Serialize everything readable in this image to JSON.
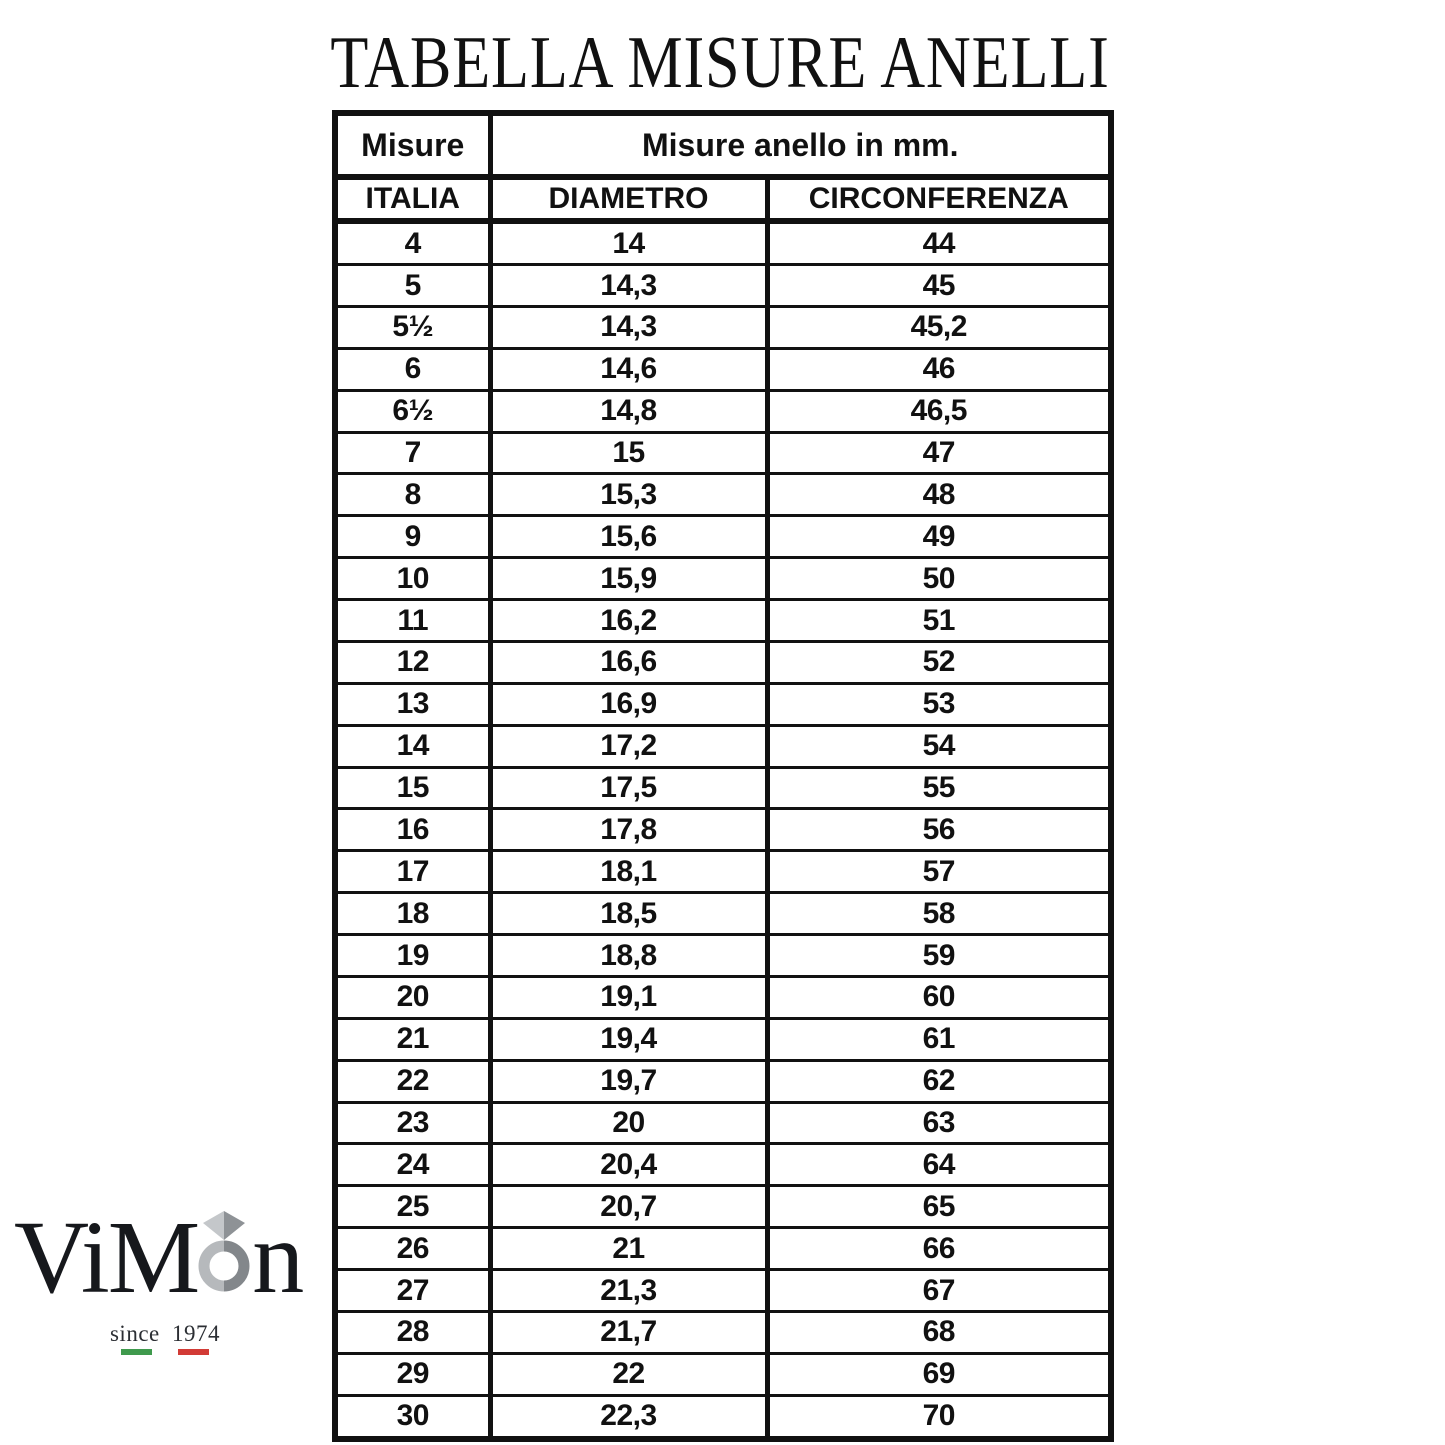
{
  "page": {
    "title": "TABELLA MISURE ANELLI"
  },
  "table": {
    "header": {
      "col_group_label": "Misure",
      "span_label": "Misure anello in mm.",
      "columns": [
        "ITALIA",
        "DIAMETRO",
        "CIRCONFERENZA"
      ]
    },
    "rows": [
      [
        "4",
        "14",
        "44"
      ],
      [
        "5",
        "14,3",
        "45"
      ],
      [
        "5½",
        "14,3",
        "45,2"
      ],
      [
        "6",
        "14,6",
        "46"
      ],
      [
        "6½",
        "14,8",
        "46,5"
      ],
      [
        "7",
        "15",
        "47"
      ],
      [
        "8",
        "15,3",
        "48"
      ],
      [
        "9",
        "15,6",
        "49"
      ],
      [
        "10",
        "15,9",
        "50"
      ],
      [
        "11",
        "16,2",
        "51"
      ],
      [
        "12",
        "16,6",
        "52"
      ],
      [
        "13",
        "16,9",
        "53"
      ],
      [
        "14",
        "17,2",
        "54"
      ],
      [
        "15",
        "17,5",
        "55"
      ],
      [
        "16",
        "17,8",
        "56"
      ],
      [
        "17",
        "18,1",
        "57"
      ],
      [
        "18",
        "18,5",
        "58"
      ],
      [
        "19",
        "18,8",
        "59"
      ],
      [
        "20",
        "19,1",
        "60"
      ],
      [
        "21",
        "19,4",
        "61"
      ],
      [
        "22",
        "19,7",
        "62"
      ],
      [
        "23",
        "20",
        "63"
      ],
      [
        "24",
        "20,4",
        "64"
      ],
      [
        "25",
        "20,7",
        "65"
      ],
      [
        "26",
        "21",
        "66"
      ],
      [
        "27",
        "21,3",
        "67"
      ],
      [
        "28",
        "21,7",
        "68"
      ],
      [
        "29",
        "22",
        "69"
      ],
      [
        "30",
        "22,3",
        "70"
      ]
    ]
  },
  "logo": {
    "text_left": "ViM",
    "text_right": "n",
    "ring_icon": "diamond-ring-icon",
    "tagline": "since 1974"
  },
  "colors": {
    "text": "#111111",
    "table_border": "#111111",
    "ring_light_gray": "#b6b9bc",
    "ring_dark_gray": "#83878b",
    "diamond_light_gray": "#c4c7ca",
    "diamond_dark_gray": "#8e9296",
    "flag_green": "#3f9a4d",
    "flag_red": "#d23b36"
  }
}
